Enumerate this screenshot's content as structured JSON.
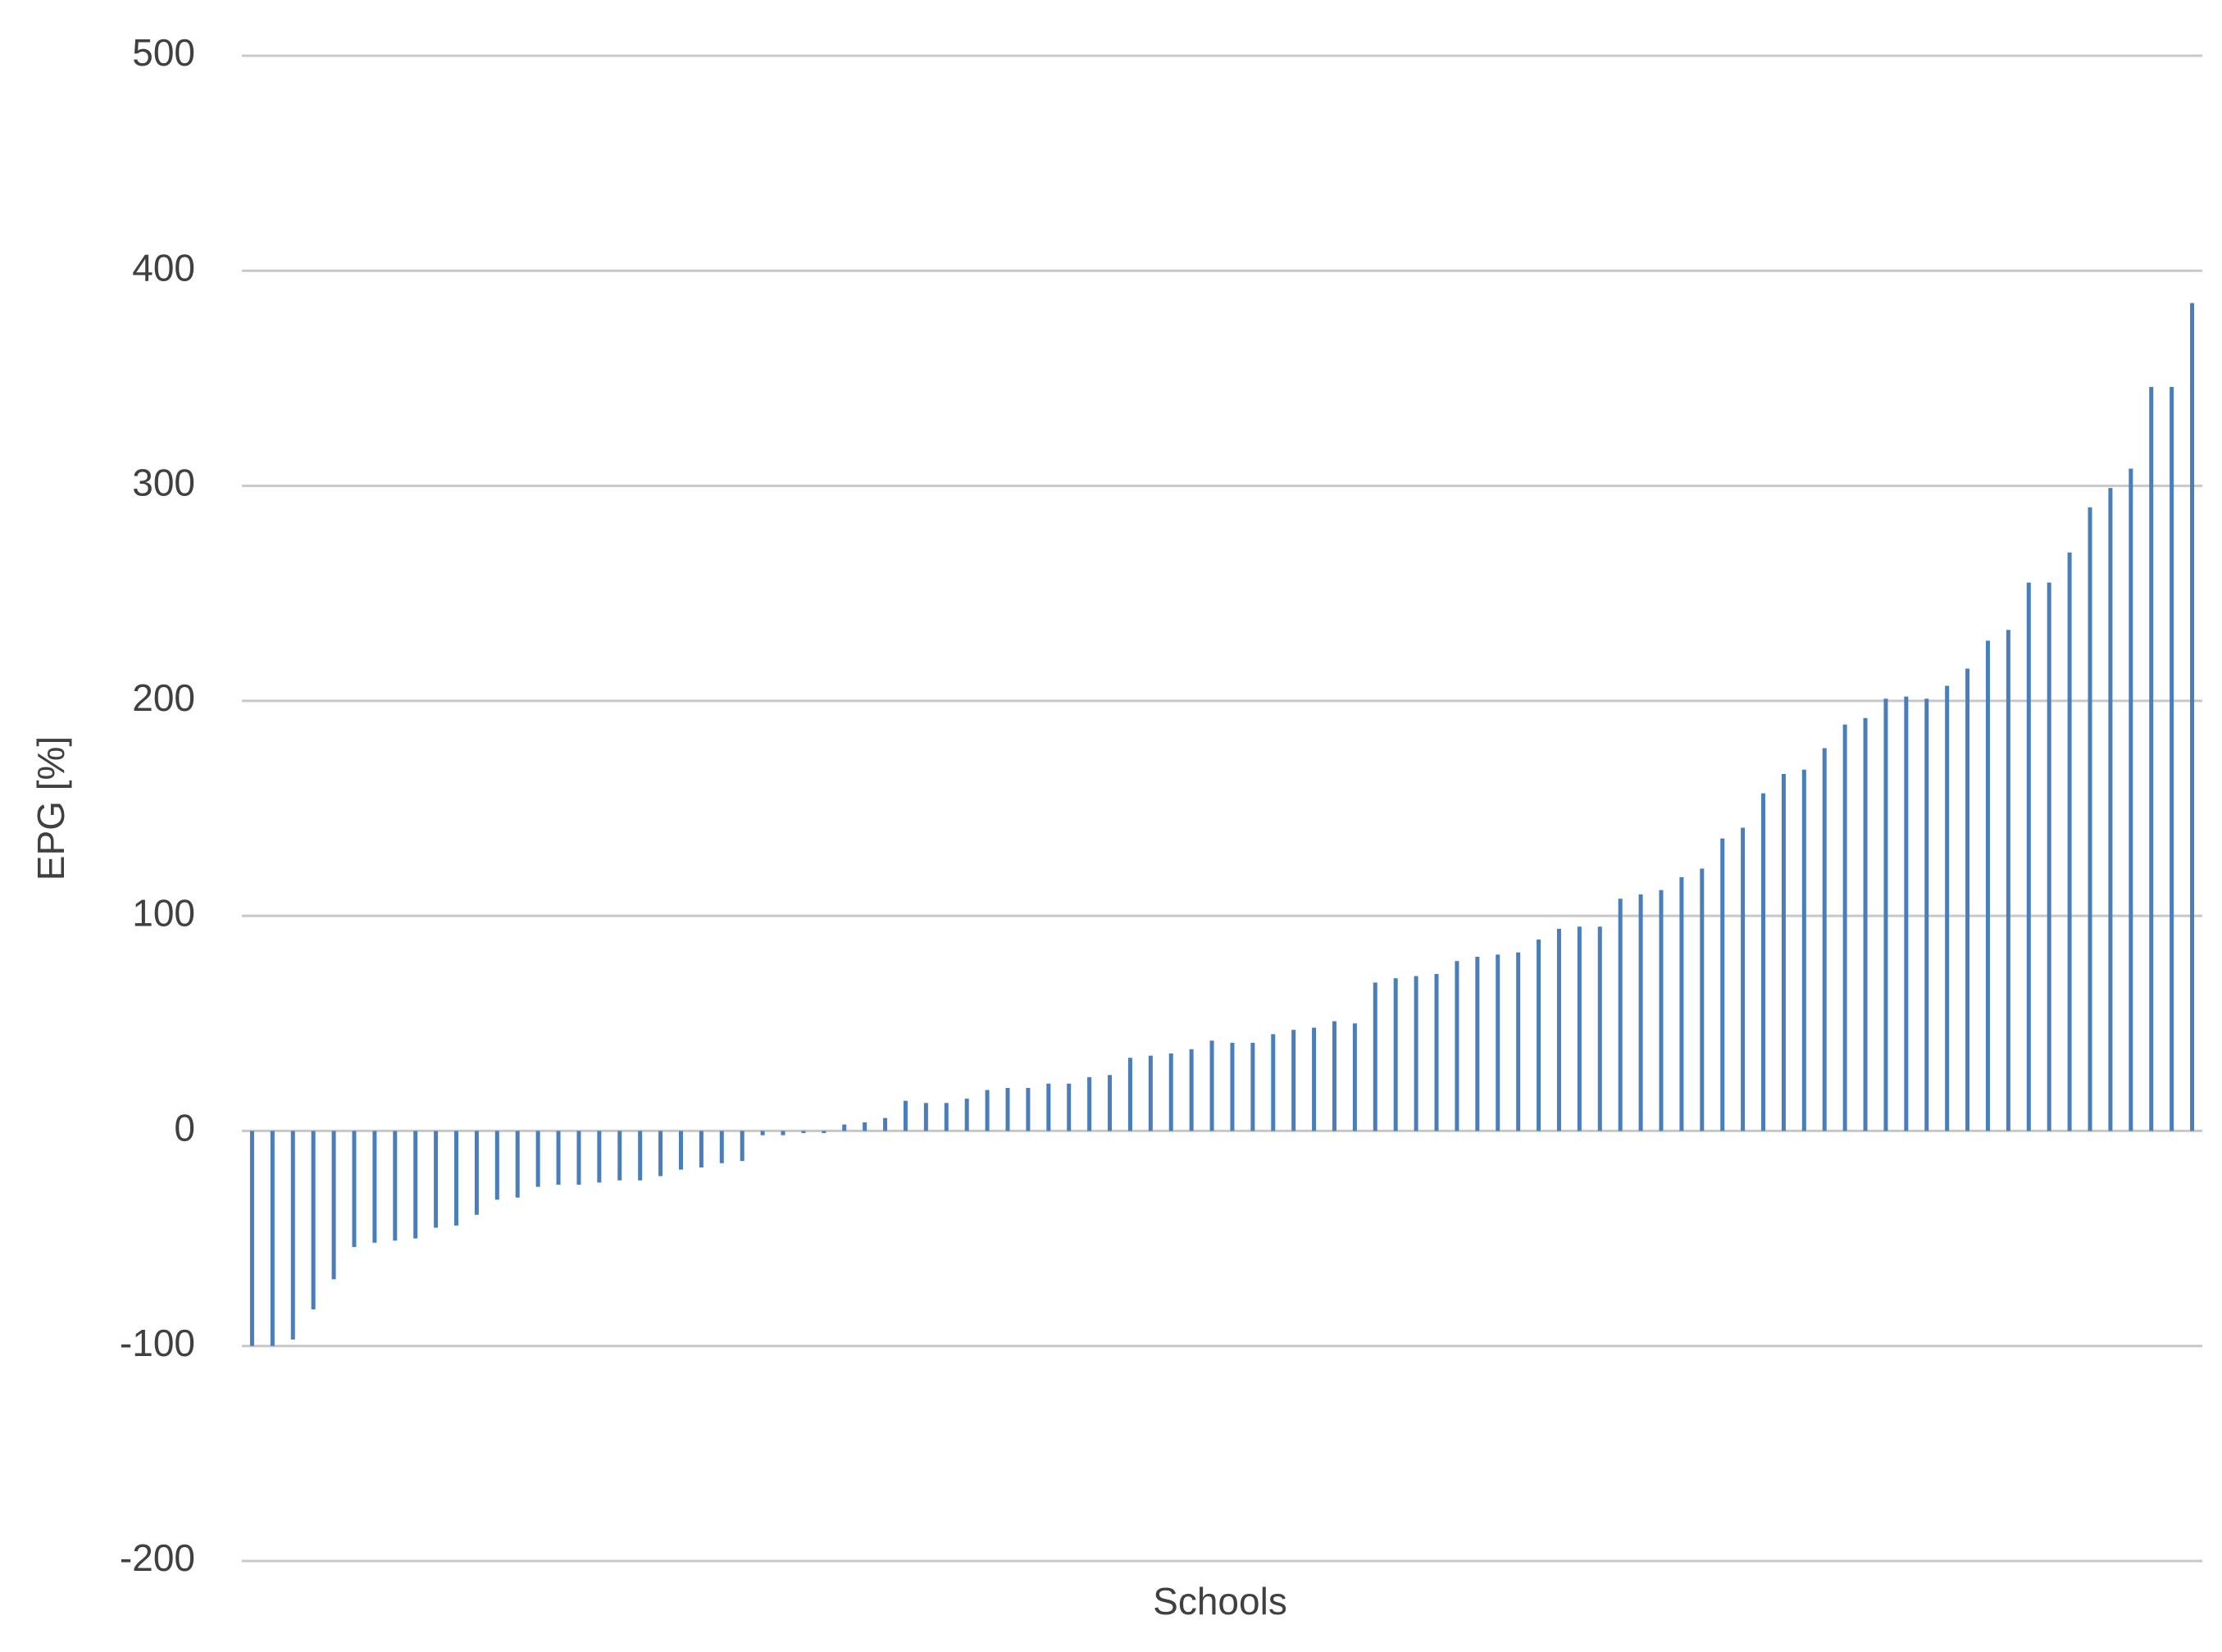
{
  "chart_data": {
    "type": "bar",
    "x_label": "Schools",
    "y_label": "EPG [%]",
    "categories": [
      null,
      null,
      null,
      null,
      null,
      null,
      null,
      null,
      null,
      null,
      null,
      null,
      null,
      null,
      null,
      null,
      null,
      null,
      null,
      null,
      null,
      null,
      null,
      null,
      null,
      null,
      null,
      null,
      null,
      null,
      null,
      null,
      null,
      null,
      null,
      null,
      null,
      null,
      null,
      null,
      null,
      null,
      null,
      null,
      null,
      null,
      null,
      null,
      null,
      null,
      null,
      null,
      null,
      null,
      null,
      null,
      null,
      null,
      null,
      null,
      null,
      null,
      null,
      null,
      null,
      null,
      null,
      null,
      null,
      null,
      null,
      null,
      null,
      null,
      null,
      null,
      null,
      null,
      null,
      null,
      null,
      null,
      null,
      null,
      null,
      null,
      null,
      null,
      null,
      null,
      null,
      null,
      null,
      null,
      null,
      null
    ],
    "values": [
      -100,
      -100,
      -97,
      -83,
      -69,
      -54,
      -52,
      -51,
      -50,
      -45,
      -44,
      -39,
      -32,
      -31,
      -26,
      -25,
      -25,
      -24,
      -23,
      -23,
      -21,
      -18,
      -17,
      -15,
      -14,
      -2,
      -2,
      -1,
      -1,
      3,
      4,
      6,
      14,
      13,
      13,
      15,
      19,
      20,
      20,
      22,
      22,
      25,
      26,
      34,
      35,
      36,
      38,
      42,
      41,
      41,
      45,
      47,
      48,
      51,
      50,
      69,
      71,
      72,
      73,
      79,
      81,
      82,
      83,
      89,
      94,
      95,
      95,
      108,
      110,
      112,
      118,
      122,
      136,
      141,
      157,
      166,
      168,
      178,
      189,
      192,
      201,
      202,
      201,
      207,
      215,
      228,
      233,
      255,
      255,
      269,
      290,
      299,
      308,
      346,
      346,
      385
    ],
    "color": "#4a7ebb",
    "ylim": [
      -200,
      500
    ],
    "yticks": [
      -200,
      -100,
      0,
      100,
      200,
      300,
      400,
      500
    ],
    "grid": true
  }
}
